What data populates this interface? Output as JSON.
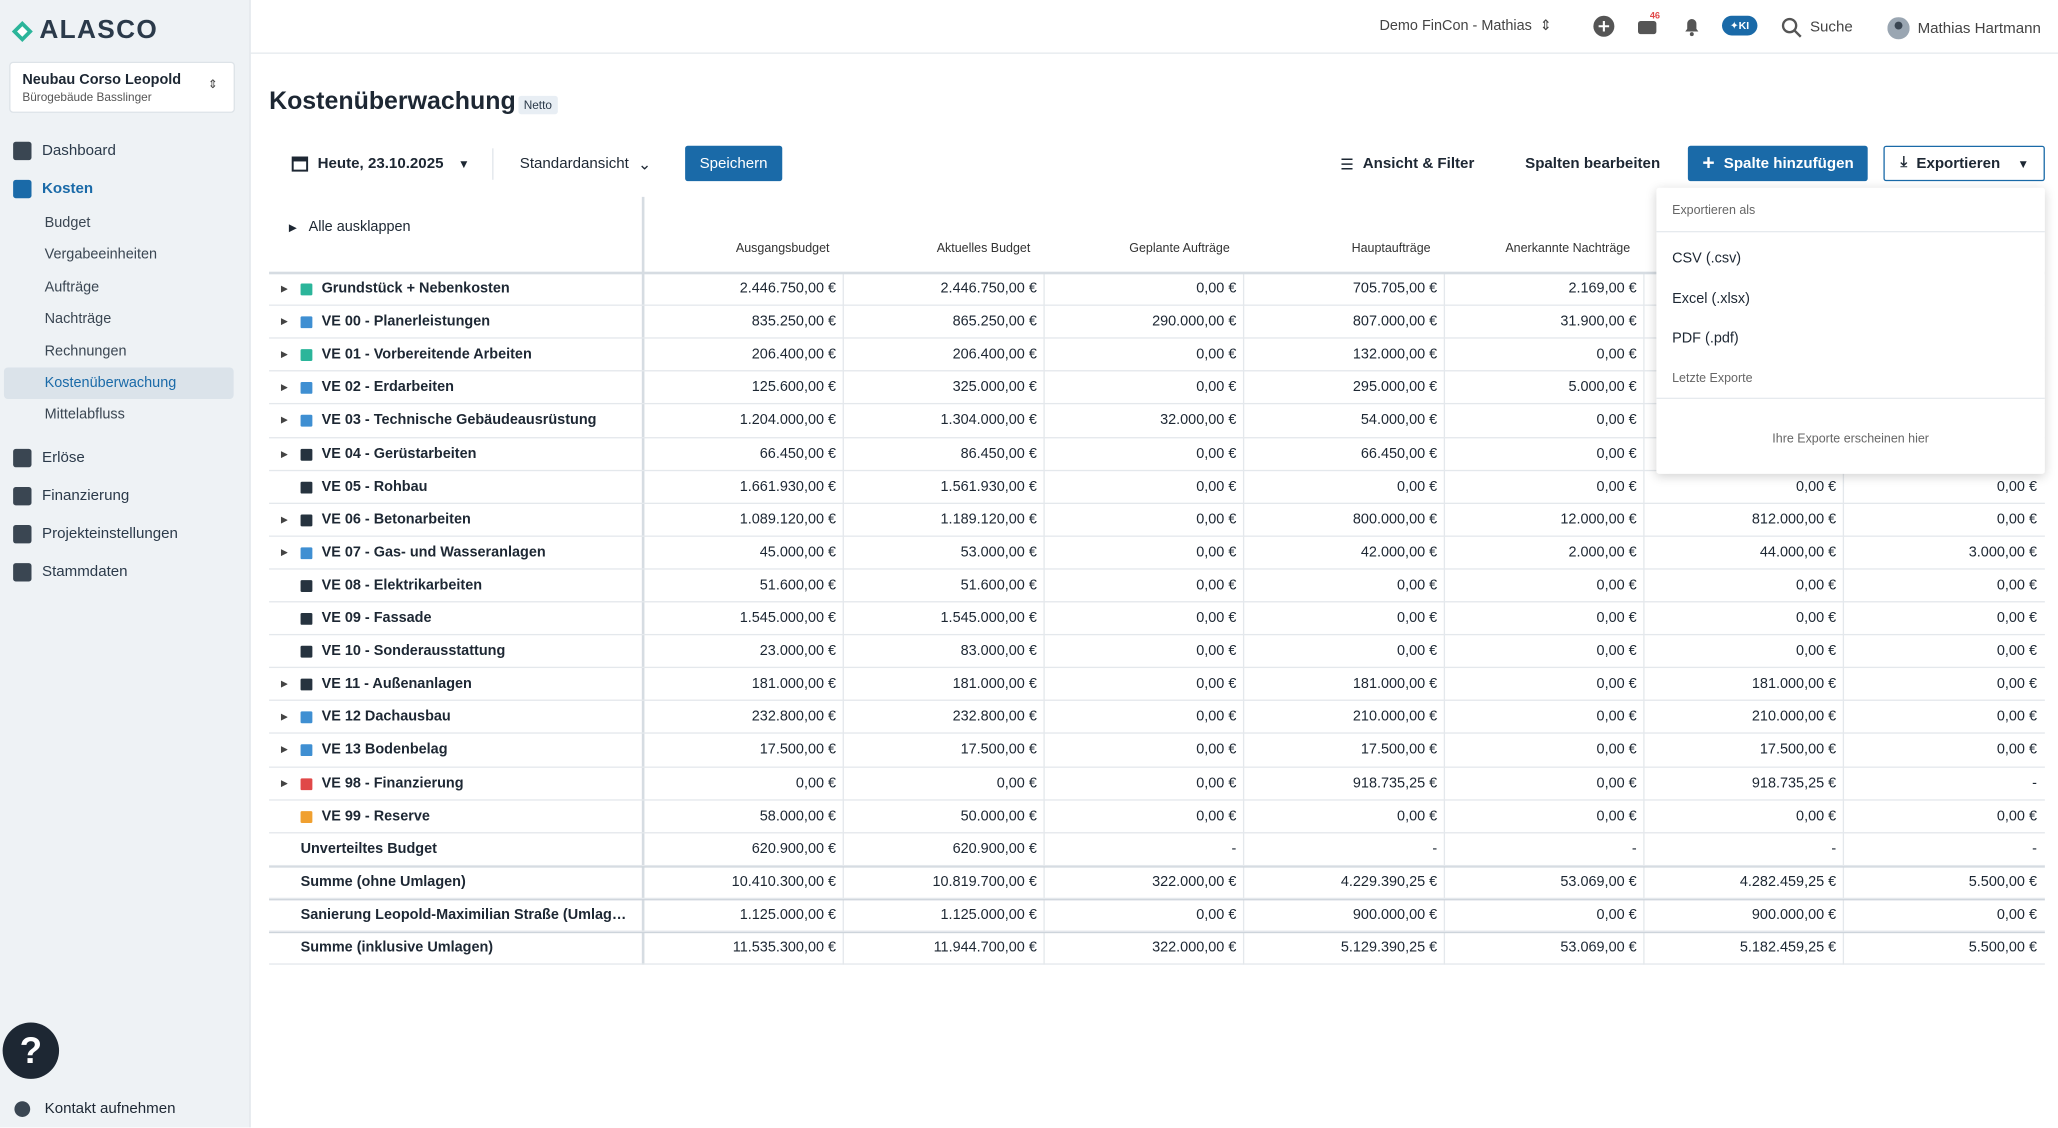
{
  "sidebar": {
    "logo": "ALASCO",
    "project": {
      "name": "Neubau Corso Leopold",
      "sub": "Bürogebäude Basslinger"
    },
    "nav": [
      {
        "label": "Dashboard"
      },
      {
        "label": "Kosten",
        "active": true,
        "children": [
          {
            "label": "Budget"
          },
          {
            "label": "Vergabeeinheiten"
          },
          {
            "label": "Aufträge"
          },
          {
            "label": "Nachträge"
          },
          {
            "label": "Rechnungen"
          },
          {
            "label": "Kostenüberwachung",
            "active": true
          },
          {
            "label": "Mittelabfluss"
          }
        ]
      },
      {
        "label": "Erlöse"
      },
      {
        "label": "Finanzierung"
      },
      {
        "label": "Projekteinstellungen"
      },
      {
        "label": "Stammdaten"
      }
    ],
    "help": "?",
    "contact": "Kontakt aufnehmen"
  },
  "topbar": {
    "company": "Demo FinCon - Mathias",
    "badge": "46",
    "ki": "KI",
    "search": "Suche",
    "user": "Mathias Hartmann"
  },
  "page": {
    "title": "Kostenüberwachung",
    "tag": "Netto"
  },
  "toolbar": {
    "date": "Heute, 23.10.2025",
    "view": "Standardansicht",
    "save": "Speichern",
    "filter": "Ansicht & Filter",
    "columns": "Spalten bearbeiten",
    "add": "Spalte hinzufügen",
    "export": "Exportieren"
  },
  "export_menu": {
    "heading": "Exportieren als",
    "options": [
      "CSV (.csv)",
      "Excel (.xlsx)",
      "PDF (.pdf)"
    ],
    "recent": "Letzte Exporte",
    "empty": "Ihre Exporte erscheinen hier"
  },
  "table": {
    "expand_all": "Alle ausklappen",
    "columns": [
      "Ausgangsbudget",
      "Aktuelles Budget",
      "Geplante Aufträge",
      "Hauptaufträge",
      "Anerkannte Nachträge",
      null,
      null
    ],
    "rows": [
      {
        "name": "Grundstück + Nebenkosten",
        "color": "#2bb59a",
        "expandable": true,
        "cells": [
          "2.446.750,00 €",
          "2.446.750,00 €",
          "0,00 €",
          "705.705,00 €",
          "2.169,00 €",
          null,
          null
        ]
      },
      {
        "name": "VE 00 - Planerleistungen",
        "color": "#3f8fd2",
        "expandable": true,
        "cells": [
          "835.250,00 €",
          "865.250,00 €",
          "290.000,00 €",
          "807.000,00 €",
          "31.900,00 €",
          null,
          null
        ]
      },
      {
        "name": "VE 01 - Vorbereitende Arbeiten",
        "color": "#2bb59a",
        "expandable": true,
        "cells": [
          "206.400,00 €",
          "206.400,00 €",
          "0,00 €",
          "132.000,00 €",
          "0,00 €",
          null,
          null
        ]
      },
      {
        "name": "VE 02 - Erdarbeiten",
        "color": "#3f8fd2",
        "expandable": true,
        "cells": [
          "125.600,00 €",
          "325.000,00 €",
          "0,00 €",
          "295.000,00 €",
          "5.000,00 €",
          null,
          null
        ]
      },
      {
        "name": "VE 03 - Technische Gebäudeausrüstung",
        "color": "#3f8fd2",
        "expandable": true,
        "cells": [
          "1.204.000,00 €",
          "1.304.000,00 €",
          "32.000,00 €",
          "54.000,00 €",
          "0,00 €",
          null,
          null
        ]
      },
      {
        "name": "VE 04 - Gerüstarbeiten",
        "color": "#26333f",
        "expandable": true,
        "cells": [
          "66.450,00 €",
          "86.450,00 €",
          "0,00 €",
          "66.450,00 €",
          "0,00 €",
          null,
          null
        ]
      },
      {
        "name": "VE 05 - Rohbau",
        "color": "#26333f",
        "expandable": false,
        "cells": [
          "1.661.930,00 €",
          "1.561.930,00 €",
          "0,00 €",
          "0,00 €",
          "0,00 €",
          "0,00 €",
          "0,00 €"
        ]
      },
      {
        "name": "VE 06 - Betonarbeiten",
        "color": "#26333f",
        "expandable": true,
        "cells": [
          "1.089.120,00 €",
          "1.189.120,00 €",
          "0,00 €",
          "800.000,00 €",
          "12.000,00 €",
          "812.000,00 €",
          "0,00 €"
        ]
      },
      {
        "name": "VE 07 - Gas- und Wasseranlagen",
        "color": "#3f8fd2",
        "expandable": true,
        "cells": [
          "45.000,00 €",
          "53.000,00 €",
          "0,00 €",
          "42.000,00 €",
          "2.000,00 €",
          "44.000,00 €",
          "3.000,00 €"
        ]
      },
      {
        "name": "VE 08 - Elektrikarbeiten",
        "color": "#26333f",
        "expandable": false,
        "cells": [
          "51.600,00 €",
          "51.600,00 €",
          "0,00 €",
          "0,00 €",
          "0,00 €",
          "0,00 €",
          "0,00 €"
        ]
      },
      {
        "name": "VE 09 - Fassade",
        "color": "#26333f",
        "expandable": false,
        "cells": [
          "1.545.000,00 €",
          "1.545.000,00 €",
          "0,00 €",
          "0,00 €",
          "0,00 €",
          "0,00 €",
          "0,00 €"
        ]
      },
      {
        "name": "VE 10 - Sonderausstattung",
        "color": "#26333f",
        "expandable": false,
        "cells": [
          "23.000,00 €",
          "83.000,00 €",
          "0,00 €",
          "0,00 €",
          "0,00 €",
          "0,00 €",
          "0,00 €"
        ]
      },
      {
        "name": "VE 11 - Außenanlagen",
        "color": "#26333f",
        "expandable": true,
        "cells": [
          "181.000,00 €",
          "181.000,00 €",
          "0,00 €",
          "181.000,00 €",
          "0,00 €",
          "181.000,00 €",
          "0,00 €"
        ]
      },
      {
        "name": "VE 12 Dachausbau",
        "color": "#3f8fd2",
        "expandable": true,
        "cells": [
          "232.800,00 €",
          "232.800,00 €",
          "0,00 €",
          "210.000,00 €",
          "0,00 €",
          "210.000,00 €",
          "0,00 €"
        ]
      },
      {
        "name": "VE 13 Bodenbelag",
        "color": "#3f8fd2",
        "expandable": true,
        "cells": [
          "17.500,00 €",
          "17.500,00 €",
          "0,00 €",
          "17.500,00 €",
          "0,00 €",
          "17.500,00 €",
          "0,00 €"
        ]
      },
      {
        "name": "VE 98 - Finanzierung",
        "color": "#e04848",
        "expandable": true,
        "cells": [
          "0,00 €",
          "0,00 €",
          "0,00 €",
          "918.735,25 €",
          "0,00 €",
          "918.735,25 €",
          "-"
        ]
      },
      {
        "name": "VE 99 - Reserve",
        "color": "#f0a030",
        "expandable": false,
        "cells": [
          "58.000,00 €",
          "50.000,00 €",
          "0,00 €",
          "0,00 €",
          "0,00 €",
          "0,00 €",
          "0,00 €"
        ]
      },
      {
        "name": "Unverteiltes Budget",
        "color": null,
        "expandable": false,
        "cells": [
          "620.900,00 €",
          "620.900,00 €",
          "-",
          "-",
          "-",
          "-",
          "-"
        ]
      }
    ],
    "totals": [
      {
        "name": "Summe (ohne Umlagen)",
        "cells": [
          "10.410.300,00 €",
          "10.819.700,00 €",
          "322.000,00 €",
          "4.229.390,25 €",
          "53.069,00 €",
          "4.282.459,25 €",
          "5.500,00 €"
        ]
      },
      {
        "name": "Sanierung Leopold-Maximilian Straße (Umlage...",
        "cells": [
          "1.125.000,00 €",
          "1.125.000,00 €",
          "0,00 €",
          "900.000,00 €",
          "0,00 €",
          "900.000,00 €",
          "0,00 €"
        ]
      },
      {
        "name": "Summe (inklusive Umlagen)",
        "cells": [
          "11.535.300,00 €",
          "11.944.700,00 €",
          "322.000,00 €",
          "5.129.390,25 €",
          "53.069,00 €",
          "5.182.459,25 €",
          "5.500,00 €"
        ]
      }
    ]
  }
}
